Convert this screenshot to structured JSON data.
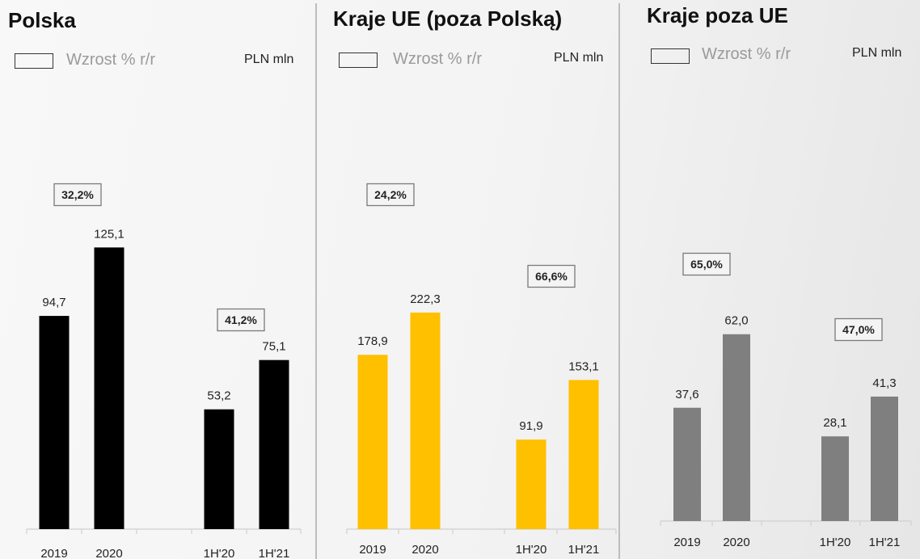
{
  "legend_label": "Wzrost % r/r",
  "unit_label": "PLN mln",
  "chart_data": [
    {
      "type": "bar",
      "title": "Polska",
      "color": "#000000",
      "categories": [
        "2019",
        "2020",
        "1H'20",
        "1H'21"
      ],
      "values": [
        94.7,
        125.1,
        53.2,
        75.1
      ],
      "value_labels": [
        "94,7",
        "125,1",
        "53,2",
        "75,1"
      ],
      "growth": [
        {
          "label": "32,2%",
          "from": "2019",
          "to": "2020"
        },
        {
          "label": "41,2%",
          "from": "1H'20",
          "to": "1H'21"
        }
      ]
    },
    {
      "type": "bar",
      "title": "Kraje UE (poza Polską)",
      "color": "#FFC000",
      "categories": [
        "2019",
        "2020",
        "1H'20",
        "1H'21"
      ],
      "values": [
        178.9,
        222.3,
        91.9,
        153.1
      ],
      "value_labels": [
        "178,9",
        "222,3",
        "91,9",
        "153,1"
      ],
      "growth": [
        {
          "label": "24,2%",
          "from": "2019",
          "to": "2020"
        },
        {
          "label": "66,6%",
          "from": "1H'20",
          "to": "1H'21"
        }
      ]
    },
    {
      "type": "bar",
      "title": "Kraje poza UE",
      "color": "#7F7F7F",
      "categories": [
        "2019",
        "2020",
        "1H'20",
        "1H'21"
      ],
      "values": [
        37.6,
        62.0,
        28.1,
        41.3
      ],
      "value_labels": [
        "37,6",
        "62,0",
        "28,1",
        "41,3"
      ],
      "growth": [
        {
          "label": "65,0%",
          "from": "2019",
          "to": "2020"
        },
        {
          "label": "47,0%",
          "from": "1H'20",
          "to": "1H'21"
        }
      ]
    }
  ]
}
